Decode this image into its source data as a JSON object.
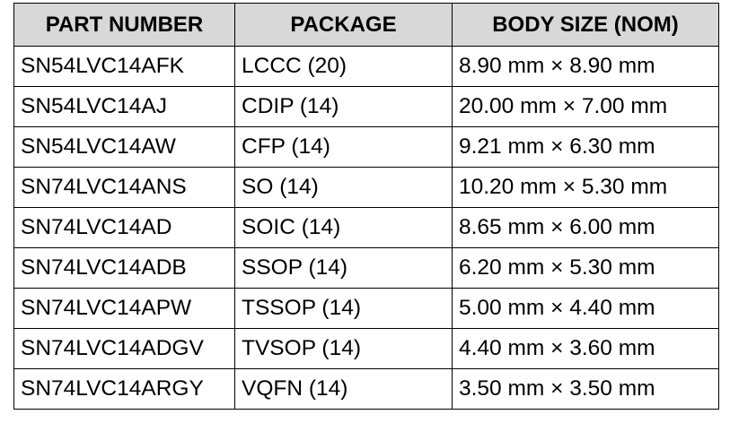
{
  "table": {
    "headers": [
      "PART NUMBER",
      "PACKAGE",
      "BODY SIZE (NOM)"
    ],
    "rows": [
      [
        "SN54LVC14AFK",
        "LCCC (20)",
        "8.90 mm × 8.90 mm"
      ],
      [
        "SN54LVC14AJ",
        "CDIP (14)",
        "20.00 mm × 7.00 mm"
      ],
      [
        "SN54LVC14AW",
        "CFP (14)",
        "9.21 mm × 6.30 mm"
      ],
      [
        "SN74LVC14ANS",
        "SO (14)",
        "10.20 mm × 5.30 mm"
      ],
      [
        "SN74LVC14AD",
        "SOIC (14)",
        "8.65 mm × 6.00 mm"
      ],
      [
        "SN74LVC14ADB",
        "SSOP (14)",
        "6.20 mm × 5.30 mm"
      ],
      [
        "SN74LVC14APW",
        "TSSOP (14)",
        "5.00 mm × 4.40 mm"
      ],
      [
        "SN74LVC14ADGV",
        "TVSOP (14)",
        "4.40 mm × 3.60 mm"
      ],
      [
        "SN74LVC14ARGY",
        "VQFN (14)",
        "3.50 mm × 3.50 mm"
      ]
    ],
    "header_background": "#d8d8d8",
    "border_color": "#000000"
  }
}
